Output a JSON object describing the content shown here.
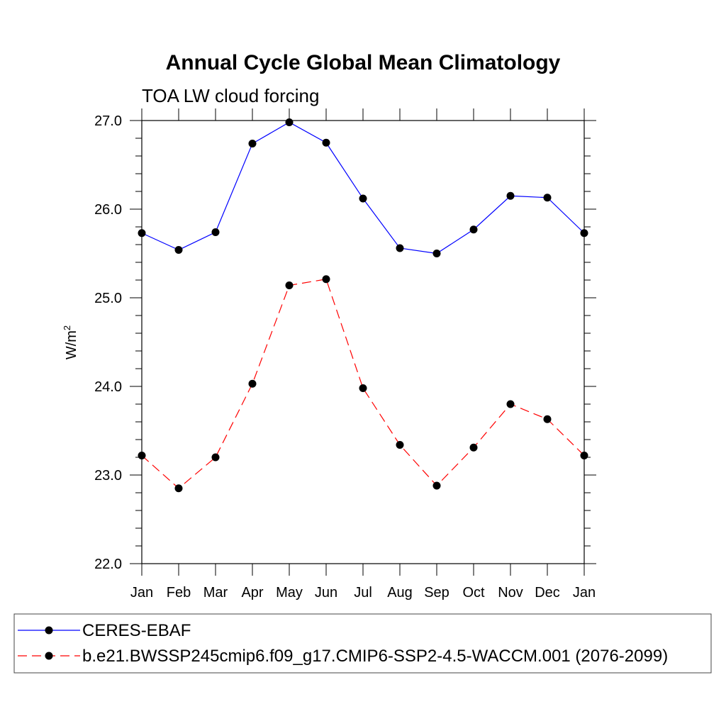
{
  "chart_data": {
    "type": "line",
    "title": "Annual Cycle Global Mean Climatology",
    "subtitle": "TOA LW cloud forcing",
    "xlabel": "",
    "ylabel": "W/m",
    "ylabel_superscript": "2",
    "categories": [
      "Jan",
      "Feb",
      "Mar",
      "Apr",
      "May",
      "Jun",
      "Jul",
      "Aug",
      "Sep",
      "Oct",
      "Nov",
      "Dec",
      "Jan"
    ],
    "ylim": [
      22.0,
      27.0
    ],
    "yticks": [
      {
        "value": 22.0,
        "label": "22.0"
      },
      {
        "value": 23.0,
        "label": "23.0"
      },
      {
        "value": 24.0,
        "label": "24.0"
      },
      {
        "value": 25.0,
        "label": "25.0"
      },
      {
        "value": 26.0,
        "label": "26.0"
      },
      {
        "value": 27.0,
        "label": "27.0"
      }
    ],
    "y_minor_step": 0.2,
    "grid": false,
    "legend_position": "bottom",
    "series": [
      {
        "name": "CERES-EBAF",
        "color": "#0000ff",
        "dash": "solid",
        "values": [
          25.73,
          25.54,
          25.74,
          26.74,
          26.98,
          26.75,
          26.12,
          25.56,
          25.5,
          25.77,
          26.15,
          26.13,
          25.73
        ]
      },
      {
        "name": "b.e21.BWSSP245cmip6.f09_g17.CMIP6-SSP2-4.5-WACCM.001 (2076-2099)",
        "color": "#ff0000",
        "dash": "dashed",
        "values": [
          23.22,
          22.85,
          23.2,
          24.03,
          25.14,
          25.21,
          23.98,
          23.34,
          22.88,
          23.31,
          23.8,
          23.63,
          23.22
        ]
      }
    ]
  }
}
